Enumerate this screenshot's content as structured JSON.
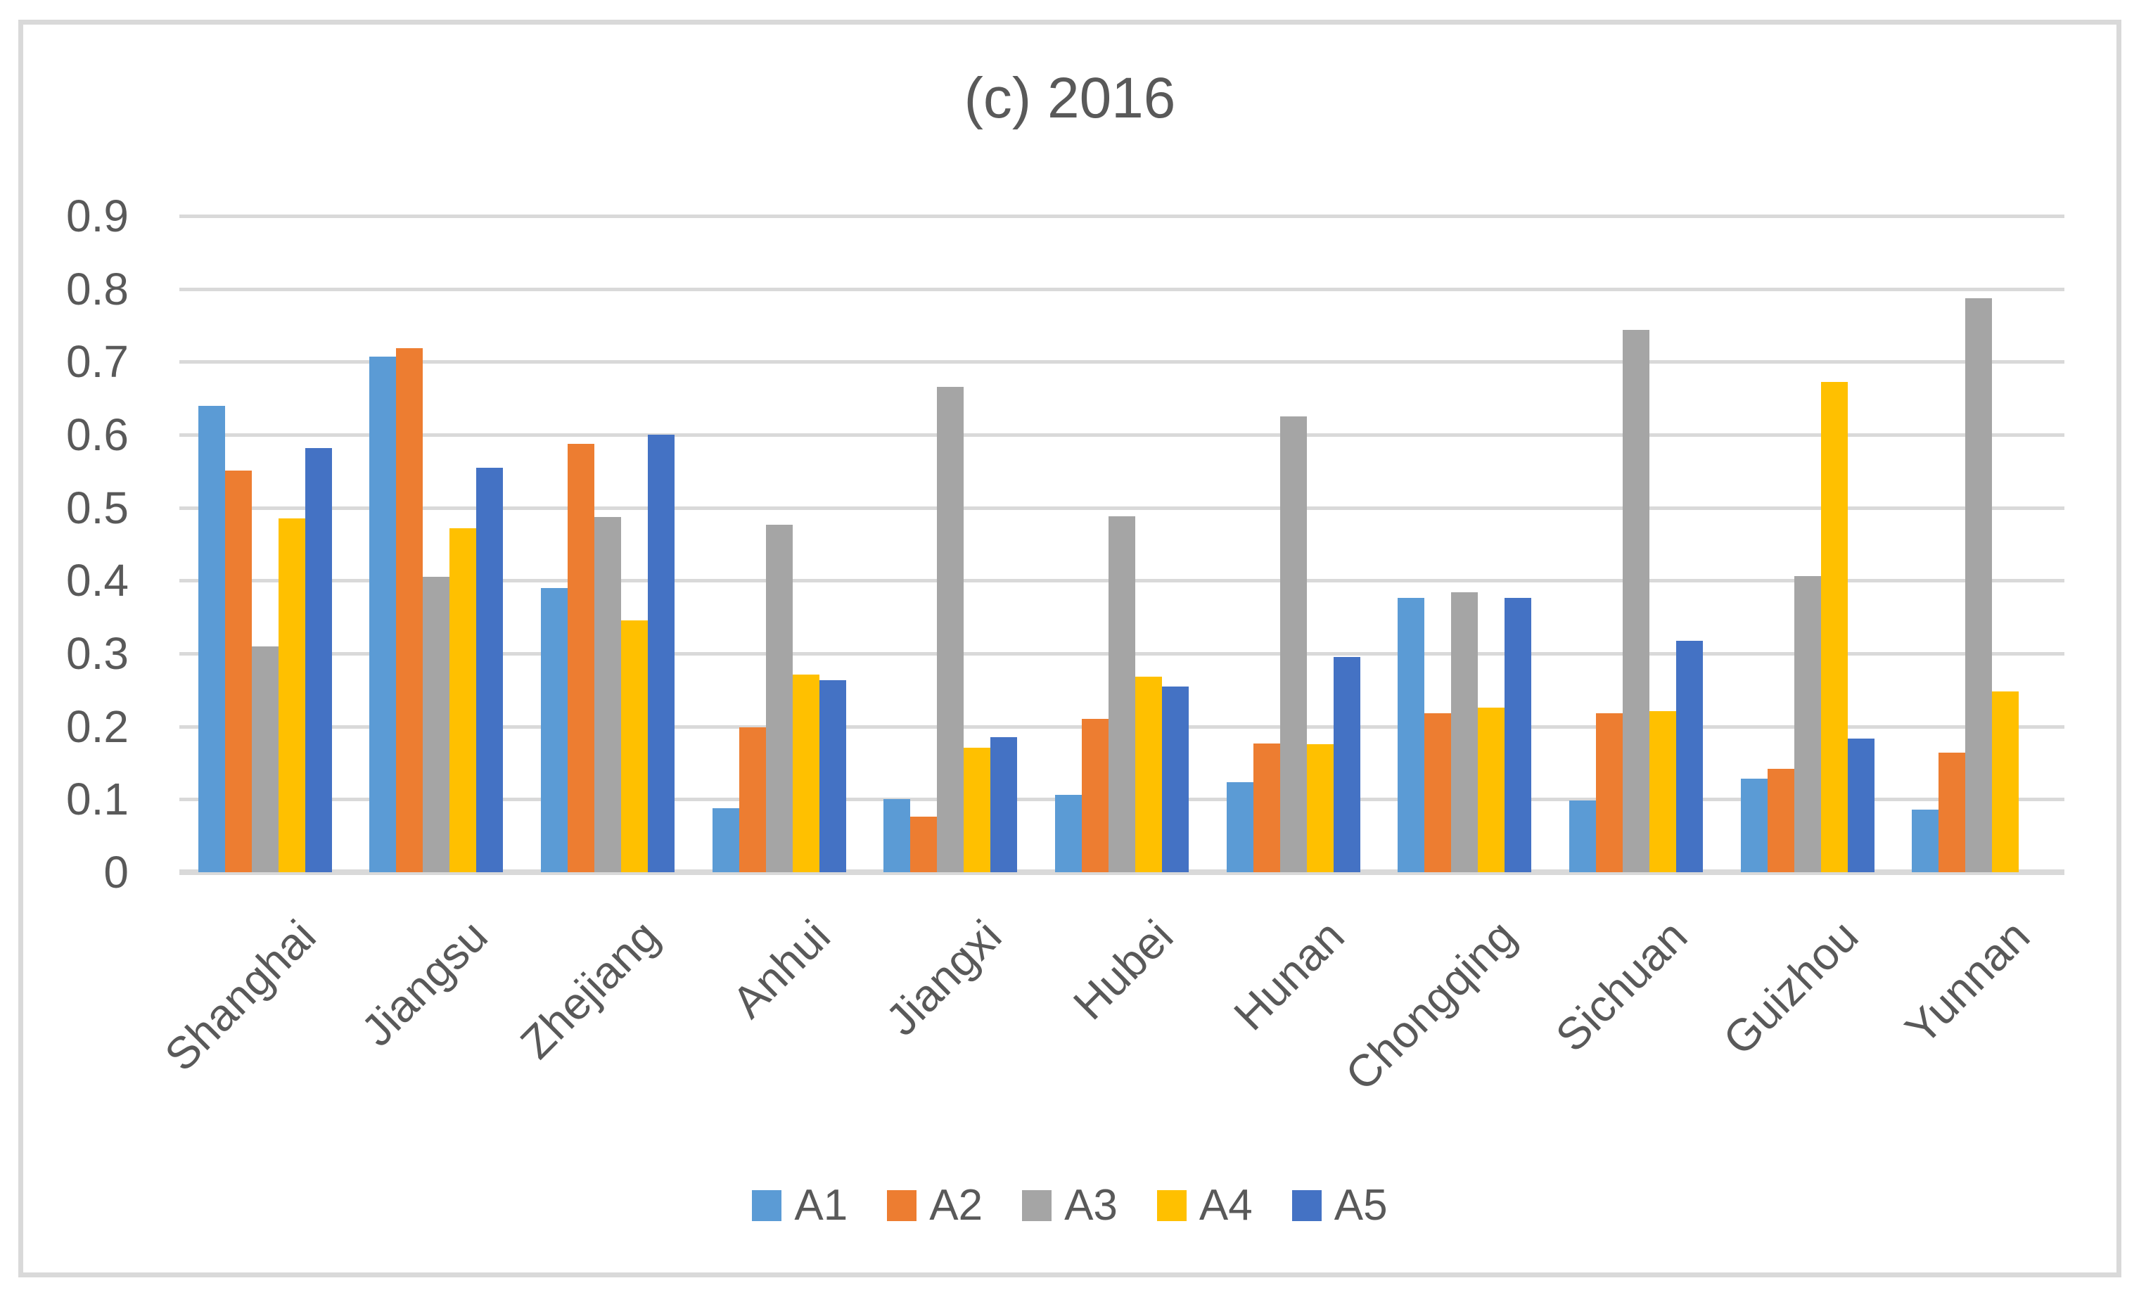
{
  "title": "(c) 2016",
  "y_axis": {
    "tick_labels": [
      "0.9",
      "0.8",
      "0.7",
      "0.6",
      "0.5",
      "0.4",
      "0.3",
      "0.2",
      "0.1",
      "0"
    ],
    "max": 0.9,
    "step": 0.1
  },
  "colors": {
    "A1": "#5B9BD5",
    "A2": "#ED7D31",
    "A3": "#A5A5A5",
    "A4": "#FFC000",
    "A5": "#4472C4",
    "gridline": "#D9D9D9",
    "axis_text": "#595959",
    "figure_border": "#D9D9D9"
  },
  "chart_data": {
    "type": "bar",
    "title": "(c) 2016",
    "categories": [
      "Shanghai",
      "Jiangsu",
      "Zhejiang",
      "Anhui",
      "Jiangxi",
      "Hubei",
      "Hunan",
      "Chongqing",
      "Sichuan",
      "Guizhou",
      "Yunnan"
    ],
    "series": [
      {
        "name": "A1",
        "color": "#5B9BD5",
        "values": [
          0.64,
          0.707,
          0.39,
          0.088,
          0.1,
          0.106,
          0.123,
          0.376,
          0.098,
          0.128,
          0.086
        ]
      },
      {
        "name": "A2",
        "color": "#ED7D31",
        "values": [
          0.551,
          0.719,
          0.587,
          0.199,
          0.076,
          0.21,
          0.177,
          0.218,
          0.218,
          0.142,
          0.164
        ]
      },
      {
        "name": "A3",
        "color": "#A5A5A5",
        "values": [
          0.31,
          0.405,
          0.487,
          0.477,
          0.666,
          0.488,
          0.625,
          0.384,
          0.744,
          0.406,
          0.787
        ]
      },
      {
        "name": "A4",
        "color": "#FFC000",
        "values": [
          0.485,
          0.472,
          0.345,
          0.271,
          0.171,
          0.268,
          0.176,
          0.226,
          0.221,
          0.672,
          0.248
        ]
      },
      {
        "name": "A5",
        "color": "#4472C4",
        "values": [
          0.582,
          0.555,
          0.6,
          0.263,
          0.185,
          0.255,
          0.295,
          0.376,
          0.317,
          0.183,
          0
        ]
      }
    ],
    "xlabel": "",
    "ylabel": "",
    "ylim": [
      0,
      0.9
    ],
    "ytick_step": 0.1,
    "grid": true,
    "legend_position": "bottom",
    "x_label_rotation_deg": -45
  }
}
